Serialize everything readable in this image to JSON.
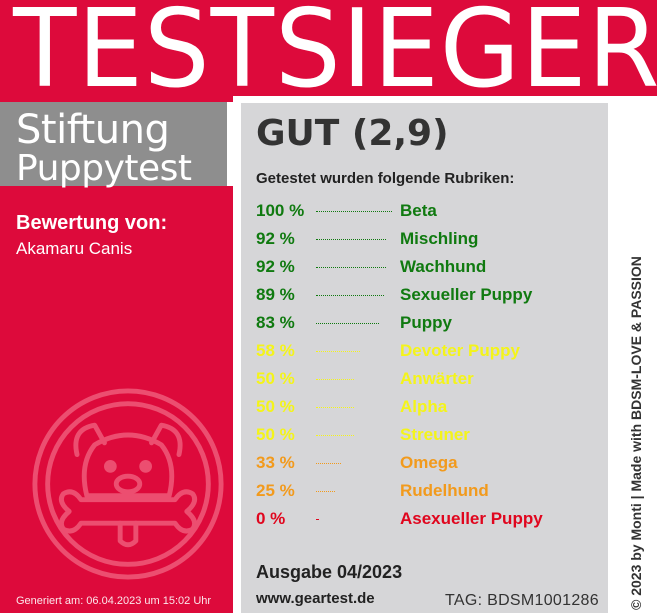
{
  "banner": {
    "title": "TESTSIEGER"
  },
  "brand": {
    "line1": "Stiftung",
    "line2": "Puppytest"
  },
  "rating": {
    "label": "Bewertung von:",
    "name": "Akamaru Canis"
  },
  "generated": "Generiert am: 06.04.2023 um 15:02 Uhr",
  "result": {
    "grade": "GUT (2,9)",
    "intro": "Getestet wurden folgende Rubriken:",
    "categories": [
      {
        "percent": "100 %",
        "value": 100,
        "name": "Beta",
        "color": "#107a10"
      },
      {
        "percent": "92 %",
        "value": 92,
        "name": "Mischling",
        "color": "#107a10"
      },
      {
        "percent": "92 %",
        "value": 92,
        "name": "Wachhund",
        "color": "#107a10"
      },
      {
        "percent": "89 %",
        "value": 89,
        "name": "Sexueller Puppy",
        "color": "#107a10"
      },
      {
        "percent": "83 %",
        "value": 83,
        "name": "Puppy",
        "color": "#107a10"
      },
      {
        "percent": "58 %",
        "value": 58,
        "name": "Devoter Puppy",
        "color": "#f4f41a"
      },
      {
        "percent": "50 %",
        "value": 50,
        "name": "Anwärter",
        "color": "#f4f41a"
      },
      {
        "percent": "50 %",
        "value": 50,
        "name": "Alpha",
        "color": "#f4f41a"
      },
      {
        "percent": "50 %",
        "value": 50,
        "name": "Streuner",
        "color": "#f4f41a"
      },
      {
        "percent": "33 %",
        "value": 33,
        "name": "Omega",
        "color": "#f29a1c"
      },
      {
        "percent": "25 %",
        "value": 25,
        "name": "Rudelhund",
        "color": "#f29a1c"
      },
      {
        "percent": "0 %",
        "value": 0,
        "name": "Asexueller Puppy",
        "color": "#e0061e"
      }
    ]
  },
  "footer": {
    "issue": "Ausgabe 04/2023",
    "website": "www.geartest.de",
    "tag": "TAG: BDSM1001286"
  },
  "credit": "© 2023 by Monti | Made with BDSM-LOVE & PASSION",
  "colors": {
    "brand_red": "#dd0a3b",
    "panel_gray": "#d6d6d8",
    "brand_gray": "#8e8e8e"
  }
}
